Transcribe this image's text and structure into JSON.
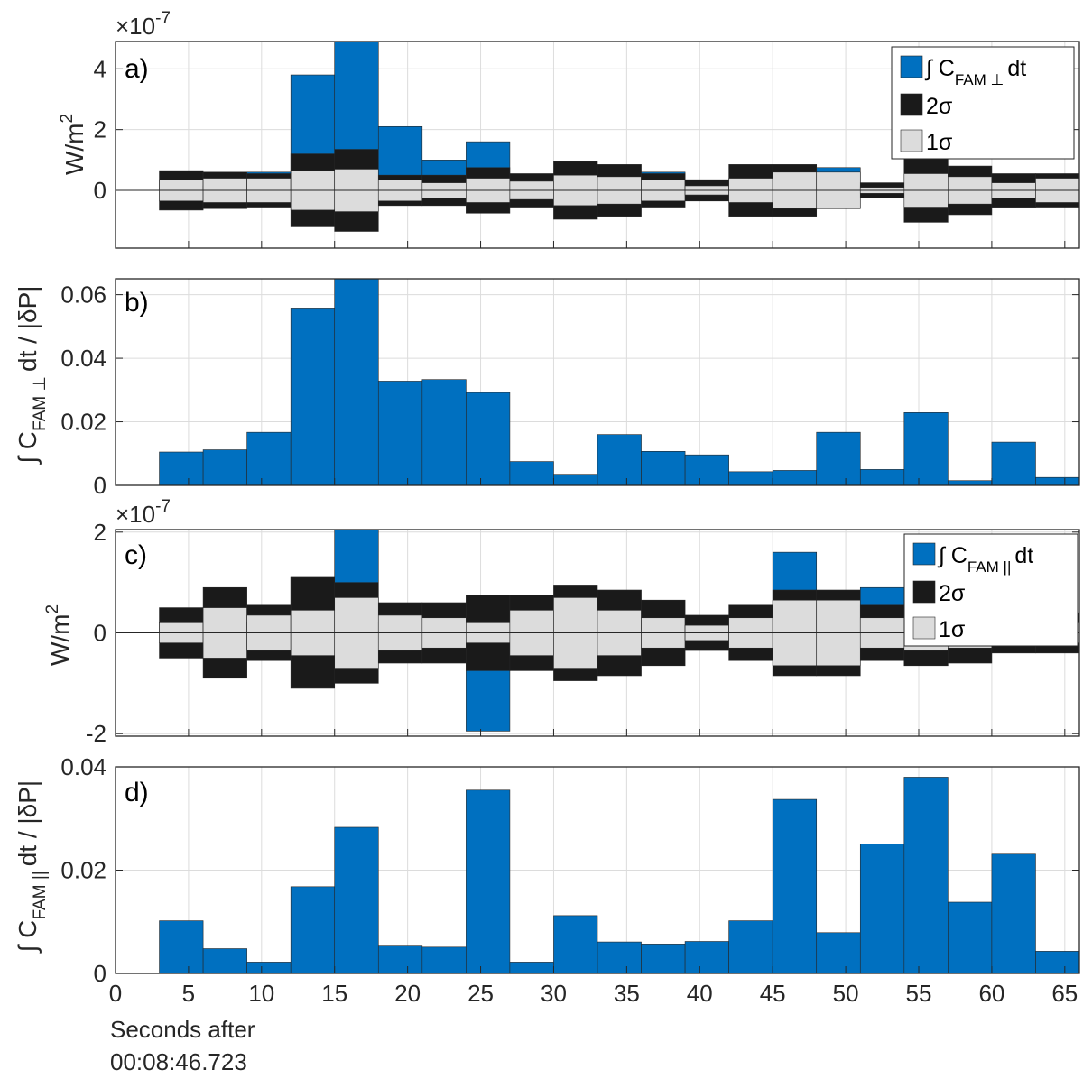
{
  "figure": {
    "xlabel_line1": "Seconds after",
    "xlabel_line2": "00:08:46.723",
    "x_ticks": [
      "0",
      "5",
      "10",
      "15",
      "20",
      "25",
      "30",
      "35",
      "40",
      "45",
      "50",
      "55",
      "60",
      "65"
    ],
    "x_tick_values": [
      0,
      5,
      10,
      15,
      20,
      25,
      30,
      35,
      40,
      45,
      50,
      55,
      60,
      65
    ],
    "colors": {
      "blue": "#0070c0",
      "twosigma": "#1a1a1a",
      "onesigma": "#dcdcdc",
      "grid": "#dcdcdc",
      "frame": "#262626"
    }
  },
  "chart_data": [
    {
      "panel": "a)",
      "type": "bar",
      "ylabel": "W/m²",
      "ylabel_main": "W/m",
      "ylabel_sup": "2",
      "scale_label": "×10",
      "scale_exp": "-7",
      "yticks": [
        "0",
        "2",
        "4"
      ],
      "ytick_values": [
        0,
        2,
        4
      ],
      "xlim": [
        0,
        66
      ],
      "ylim": [
        -1.9,
        4.9
      ],
      "bin_edges": [
        3,
        6,
        9,
        12,
        15,
        18,
        21,
        24,
        27,
        30,
        33,
        36,
        39,
        42,
        45,
        48,
        51,
        54,
        57,
        60,
        63,
        66
      ],
      "legend": {
        "labels": [
          "∫ C",
          "FAM ⊥",
          "dt",
          "2σ",
          "1σ"
        ]
      },
      "series": [
        {
          "name": "∫ C_FAM⊥ dt",
          "values": [
            0.35,
            0.15,
            0.6,
            3.8,
            4.9,
            2.1,
            1.0,
            1.6,
            -0.5,
            0.55,
            0.35,
            0.6,
            0.35,
            0.35,
            0.6,
            0.75,
            0.15,
            -0.75,
            0.35,
            -0.55,
            0.35
          ]
        },
        {
          "name": "2σ",
          "values": [
            0.65,
            0.6,
            0.55,
            1.2,
            1.35,
            0.5,
            0.5,
            0.75,
            0.55,
            0.95,
            0.85,
            0.55,
            0.35,
            0.85,
            0.85,
            0.6,
            0.25,
            1.05,
            0.8,
            0.55,
            0.55
          ]
        },
        {
          "name": "1σ",
          "values": [
            0.35,
            0.4,
            0.4,
            0.65,
            0.7,
            0.35,
            0.25,
            0.4,
            0.3,
            0.5,
            0.45,
            0.35,
            0.15,
            0.4,
            0.6,
            0.6,
            0.1,
            0.55,
            0.45,
            0.25,
            0.4
          ]
        }
      ]
    },
    {
      "panel": "b)",
      "type": "bar",
      "ylabel_pre": "∫ C",
      "ylabel_sub": "FAM ⊥",
      "ylabel_post": "dt / |δP|",
      "yticks": [
        "0",
        "0.02",
        "0.04",
        "0.06"
      ],
      "ytick_values": [
        0,
        0.02,
        0.04,
        0.06
      ],
      "xlim": [
        0,
        66
      ],
      "ylim": [
        0,
        0.065
      ],
      "bin_edges": [
        3,
        6,
        9,
        12,
        15,
        18,
        21,
        24,
        27,
        30,
        33,
        36,
        39,
        42,
        45,
        48,
        51,
        54,
        57,
        60,
        63,
        66
      ],
      "values": [
        0.0105,
        0.0112,
        0.0167,
        0.0558,
        0.065,
        0.0328,
        0.0333,
        0.0292,
        0.0075,
        0.0035,
        0.016,
        0.0107,
        0.0096,
        0.0043,
        0.0047,
        0.0167,
        0.005,
        0.0229,
        0.0015,
        0.0136,
        0.0025
      ]
    },
    {
      "panel": "c)",
      "type": "bar",
      "ylabel": "W/m²",
      "ylabel_main": "W/m",
      "ylabel_sup": "2",
      "scale_label": "×10",
      "scale_exp": "-7",
      "yticks": [
        "-2",
        "0",
        "2"
      ],
      "ytick_values": [
        -2,
        0,
        2
      ],
      "xlim": [
        0,
        66
      ],
      "ylim": [
        -2.05,
        2.05
      ],
      "bin_edges": [
        3,
        6,
        9,
        12,
        15,
        18,
        21,
        24,
        27,
        30,
        33,
        36,
        39,
        42,
        45,
        48,
        51,
        54,
        57,
        60,
        63,
        66
      ],
      "legend": {
        "labels": [
          "∫ C",
          "FAM ||",
          "dt",
          "2σ",
          "1σ"
        ]
      },
      "series": [
        {
          "name": "∫ C_FAM|| dt",
          "values": [
            0.2,
            0.4,
            0.2,
            1.1,
            2.05,
            0.2,
            0.3,
            -1.95,
            0.1,
            0.55,
            0.35,
            0.25,
            0.15,
            0.3,
            1.6,
            0.6,
            0.9,
            1.25,
            0.5,
            0.3,
            0.25
          ]
        },
        {
          "name": "2σ",
          "values": [
            0.5,
            0.9,
            0.55,
            1.1,
            1.0,
            0.6,
            0.6,
            0.75,
            0.75,
            0.95,
            0.85,
            0.65,
            0.35,
            0.55,
            0.85,
            0.85,
            0.55,
            0.65,
            0.6,
            0.4,
            0.4
          ]
        },
        {
          "name": "1σ",
          "values": [
            0.2,
            0.5,
            0.35,
            0.45,
            0.7,
            0.35,
            0.3,
            0.2,
            0.45,
            0.7,
            0.45,
            0.3,
            0.15,
            0.3,
            0.65,
            0.65,
            0.3,
            0.35,
            0.3,
            0.15,
            0.2
          ]
        }
      ]
    },
    {
      "panel": "d)",
      "type": "bar",
      "ylabel_pre": "∫ C",
      "ylabel_sub": "FAM ||",
      "ylabel_post": "dt / |δP|",
      "yticks": [
        "0",
        "0.02",
        "0.04"
      ],
      "ytick_values": [
        0,
        0.02,
        0.04
      ],
      "xlim": [
        0,
        66
      ],
      "ylim": [
        0,
        0.04
      ],
      "bin_edges": [
        3,
        6,
        9,
        12,
        15,
        18,
        21,
        24,
        27,
        30,
        33,
        36,
        39,
        42,
        45,
        48,
        51,
        54,
        57,
        60,
        63,
        66
      ],
      "values": [
        0.0102,
        0.0048,
        0.0022,
        0.0168,
        0.0283,
        0.0053,
        0.0051,
        0.0355,
        0.0022,
        0.0112,
        0.0061,
        0.0057,
        0.0062,
        0.0102,
        0.0337,
        0.0079,
        0.0251,
        0.038,
        0.0138,
        0.0231,
        0.0043
      ]
    }
  ]
}
